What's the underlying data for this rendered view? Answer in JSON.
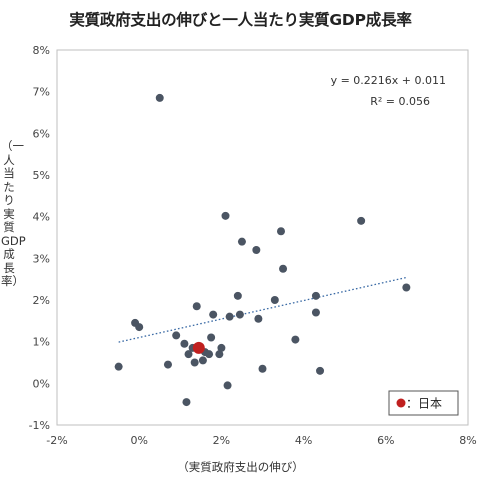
{
  "title": "実質政府支出の伸びと一人当たり実質GDP成長率",
  "chart_data": {
    "type": "scatter",
    "title": "実質政府支出の伸びと一人当たり実質GDP成長率",
    "xlabel": "（実質政府支出の伸び）",
    "ylabel": "（一人当たり実質GDP成長率）",
    "xlim": [
      -2,
      8
    ],
    "ylim": [
      -1,
      8
    ],
    "x_ticks": [
      "-2%",
      "0%",
      "2%",
      "4%",
      "6%",
      "8%"
    ],
    "y_ticks": [
      "-1%",
      "0%",
      "1%",
      "2%",
      "3%",
      "4%",
      "5%",
      "6%",
      "7%",
      "8%"
    ],
    "grid": false,
    "trendline": {
      "slope": 0.2216,
      "intercept": 0.011,
      "x_range": [
        -0.5,
        6.5
      ],
      "equation": "y = 0.2216x + 0.011",
      "r2": "R² = 0.056",
      "style": "dotted",
      "color": "#3a6aa5"
    },
    "points": [
      {
        "x": -0.5,
        "y": 0.4
      },
      {
        "x": -0.1,
        "y": 1.45
      },
      {
        "x": 0.0,
        "y": 1.35
      },
      {
        "x": 0.5,
        "y": 6.85
      },
      {
        "x": 0.7,
        "y": 0.45
      },
      {
        "x": 0.9,
        "y": 1.15
      },
      {
        "x": 1.1,
        "y": 0.95
      },
      {
        "x": 1.15,
        "y": -0.45
      },
      {
        "x": 1.2,
        "y": 0.7
      },
      {
        "x": 1.3,
        "y": 0.85
      },
      {
        "x": 1.35,
        "y": 0.5
      },
      {
        "x": 1.4,
        "y": 1.85
      },
      {
        "x": 1.55,
        "y": 0.55
      },
      {
        "x": 1.6,
        "y": 0.75
      },
      {
        "x": 1.7,
        "y": 0.7
      },
      {
        "x": 1.75,
        "y": 1.1
      },
      {
        "x": 1.8,
        "y": 1.65
      },
      {
        "x": 1.95,
        "y": 0.7
      },
      {
        "x": 2.0,
        "y": 0.85
      },
      {
        "x": 2.1,
        "y": 4.02
      },
      {
        "x": 2.15,
        "y": -0.05
      },
      {
        "x": 2.2,
        "y": 1.6
      },
      {
        "x": 2.4,
        "y": 2.1
      },
      {
        "x": 2.45,
        "y": 1.65
      },
      {
        "x": 2.5,
        "y": 3.4
      },
      {
        "x": 2.85,
        "y": 3.2
      },
      {
        "x": 2.9,
        "y": 1.55
      },
      {
        "x": 3.0,
        "y": 0.35
      },
      {
        "x": 3.3,
        "y": 2.0
      },
      {
        "x": 3.45,
        "y": 3.65
      },
      {
        "x": 3.5,
        "y": 2.75
      },
      {
        "x": 3.8,
        "y": 1.05
      },
      {
        "x": 4.3,
        "y": 2.1
      },
      {
        "x": 4.3,
        "y": 1.7
      },
      {
        "x": 4.4,
        "y": 0.3
      },
      {
        "x": 5.4,
        "y": 3.9
      },
      {
        "x": 6.5,
        "y": 2.3
      }
    ],
    "highlight": {
      "x": 1.45,
      "y": 0.85,
      "label": "日本",
      "color": "#c0201f"
    },
    "point_color": "#4b5563",
    "legend": {
      "marker_label": "：日本",
      "placement": "bottom-right"
    }
  }
}
